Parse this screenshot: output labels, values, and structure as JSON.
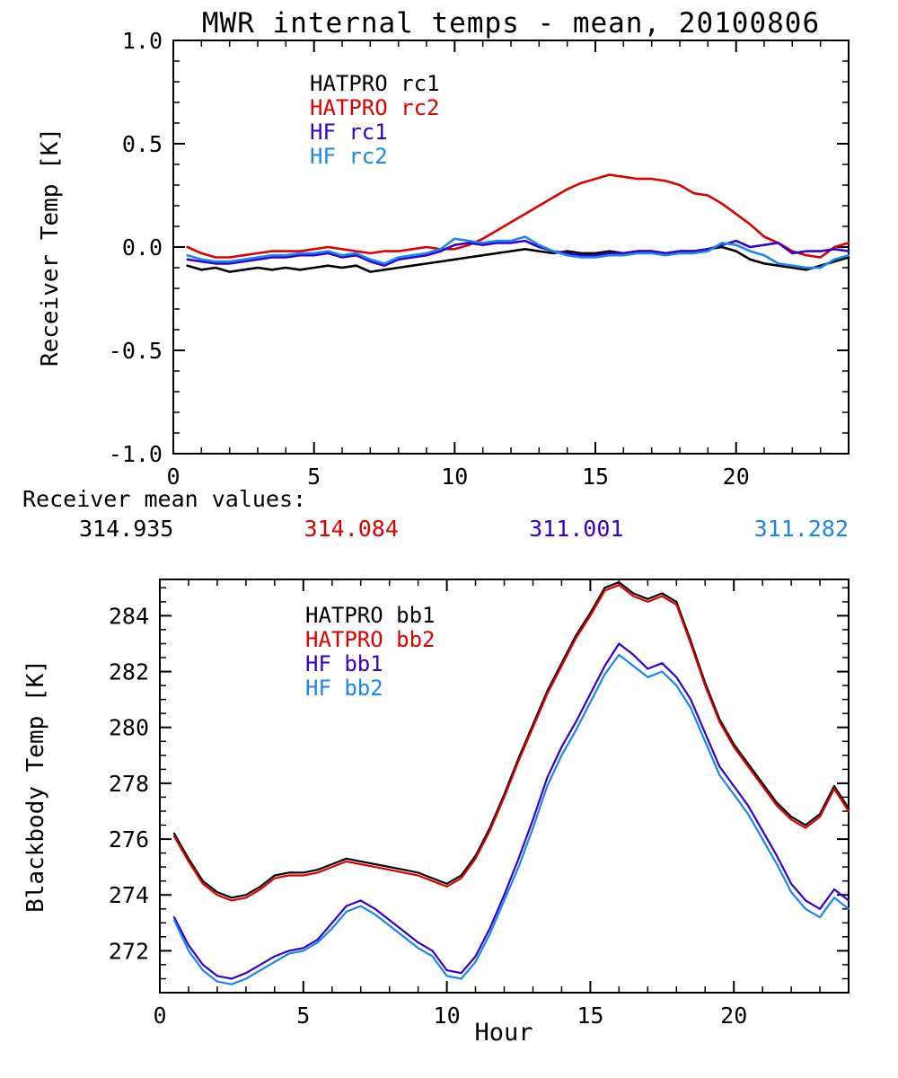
{
  "title": "MWR internal temps - mean, 20100806",
  "colors": {
    "black": "#000000",
    "red": "#dd0000",
    "blue": "#3300cc",
    "lightblue": "#1c86ee"
  },
  "mean_values": {
    "header": "Receiver mean values:",
    "values": [
      {
        "text": "314.935",
        "color_key": "black"
      },
      {
        "text": "314.084",
        "color_key": "red"
      },
      {
        "text": "311.001",
        "color_key": "blue"
      },
      {
        "text": "311.282",
        "color_key": "lightblue"
      }
    ]
  },
  "chart_data": [
    {
      "type": "line",
      "panel": "receiver",
      "title": "MWR internal temps - mean, 20100806",
      "ylabel": "Receiver Temp [K]",
      "xlabel": "",
      "xlim": [
        0,
        24
      ],
      "ylim": [
        -1.0,
        1.0
      ],
      "grid": false,
      "legend_position": "upper-left-inside",
      "xticks": {
        "values": [
          0,
          5,
          10,
          15,
          20
        ],
        "labels": [
          "0",
          "5",
          "10",
          "15",
          "20"
        ],
        "minor_step": 1
      },
      "yticks": {
        "values": [
          -1.0,
          -0.5,
          0.0,
          0.5,
          1.0
        ],
        "labels": [
          "-1.0",
          "-0.5",
          "0.0",
          "0.5",
          "1.0"
        ],
        "minor_step": 0.1
      },
      "legend": [
        {
          "label": "HATPRO rc1",
          "color_key": "black"
        },
        {
          "label": "HATPRO rc2",
          "color_key": "red"
        },
        {
          "label": "HF rc1",
          "color_key": "blue"
        },
        {
          "label": "HF rc2",
          "color_key": "lightblue"
        }
      ],
      "series": [
        {
          "name": "HATPRO rc1",
          "color_key": "black",
          "x_start": 0.5,
          "x_step": 0.5,
          "values": [
            -0.09,
            -0.11,
            -0.1,
            -0.12,
            -0.11,
            -0.1,
            -0.11,
            -0.1,
            -0.11,
            -0.1,
            -0.09,
            -0.1,
            -0.09,
            -0.12,
            -0.11,
            -0.1,
            -0.09,
            -0.08,
            -0.07,
            -0.06,
            -0.05,
            -0.04,
            -0.03,
            -0.02,
            -0.01,
            -0.02,
            -0.03,
            -0.02,
            -0.03,
            -0.03,
            -0.02,
            -0.03,
            -0.02,
            -0.02,
            -0.03,
            -0.02,
            -0.02,
            -0.01,
            0.0,
            -0.02,
            -0.06,
            -0.08,
            -0.09,
            -0.1,
            -0.11,
            -0.09,
            -0.07,
            -0.05
          ]
        },
        {
          "name": "HATPRO rc2",
          "color_key": "red",
          "x_start": 0.5,
          "x_step": 0.5,
          "values": [
            0.0,
            -0.03,
            -0.05,
            -0.05,
            -0.04,
            -0.03,
            -0.02,
            -0.02,
            -0.02,
            -0.01,
            0.0,
            -0.01,
            -0.02,
            -0.03,
            -0.02,
            -0.02,
            -0.01,
            0.0,
            -0.01,
            -0.01,
            0.01,
            0.04,
            0.08,
            0.12,
            0.16,
            0.2,
            0.24,
            0.28,
            0.31,
            0.33,
            0.35,
            0.34,
            0.33,
            0.33,
            0.32,
            0.3,
            0.26,
            0.25,
            0.21,
            0.16,
            0.11,
            0.05,
            0.02,
            -0.02,
            -0.04,
            -0.05,
            0.0,
            0.02
          ]
        },
        {
          "name": "HF rc1",
          "color_key": "blue",
          "x_start": 0.5,
          "x_step": 0.5,
          "values": [
            -0.06,
            -0.07,
            -0.08,
            -0.08,
            -0.07,
            -0.06,
            -0.05,
            -0.05,
            -0.04,
            -0.04,
            -0.03,
            -0.05,
            -0.04,
            -0.07,
            -0.09,
            -0.06,
            -0.05,
            -0.04,
            -0.02,
            0.01,
            0.02,
            0.01,
            0.02,
            0.02,
            0.03,
            0.0,
            -0.02,
            -0.03,
            -0.04,
            -0.04,
            -0.03,
            -0.03,
            -0.02,
            -0.02,
            -0.03,
            -0.02,
            -0.02,
            -0.01,
            0.01,
            0.03,
            0.0,
            0.01,
            0.02,
            -0.03,
            -0.02,
            -0.02,
            -0.01,
            -0.02
          ]
        },
        {
          "name": "HF rc2",
          "color_key": "lightblue",
          "x_start": 0.5,
          "x_step": 0.5,
          "values": [
            -0.04,
            -0.06,
            -0.07,
            -0.07,
            -0.06,
            -0.05,
            -0.04,
            -0.04,
            -0.03,
            -0.03,
            -0.02,
            -0.04,
            -0.03,
            -0.06,
            -0.08,
            -0.05,
            -0.04,
            -0.03,
            -0.01,
            0.04,
            0.03,
            0.02,
            0.03,
            0.03,
            0.05,
            0.01,
            -0.02,
            -0.04,
            -0.05,
            -0.05,
            -0.04,
            -0.04,
            -0.03,
            -0.03,
            -0.04,
            -0.03,
            -0.03,
            -0.02,
            0.02,
            0.01,
            -0.02,
            -0.04,
            -0.08,
            -0.09,
            -0.1,
            -0.1,
            -0.06,
            -0.04
          ]
        }
      ]
    },
    {
      "type": "line",
      "panel": "blackbody",
      "title": "",
      "ylabel": "Blackbody Temp [K]",
      "xlabel": "Hour",
      "xlim": [
        0,
        24
      ],
      "ylim": [
        270.5,
        285.3
      ],
      "grid": false,
      "legend_position": "upper-left-inside",
      "xticks": {
        "values": [
          0,
          5,
          10,
          15,
          20
        ],
        "labels": [
          "0",
          "5",
          "10",
          "15",
          "20"
        ],
        "minor_step": 1
      },
      "yticks": {
        "values": [
          272,
          274,
          276,
          278,
          280,
          282,
          284
        ],
        "labels": [
          "272",
          "274",
          "276",
          "278",
          "280",
          "282",
          "284"
        ],
        "minor_step": 0.5
      },
      "legend": [
        {
          "label": "HATPRO bb1",
          "color_key": "black"
        },
        {
          "label": "HATPRO bb2",
          "color_key": "red"
        },
        {
          "label": "HF bb1",
          "color_key": "blue"
        },
        {
          "label": "HF bb2",
          "color_key": "lightblue"
        }
      ],
      "series": [
        {
          "name": "HATPRO bb1",
          "color_key": "black",
          "x_start": 0.5,
          "x_step": 0.5,
          "values": [
            276.2,
            275.3,
            274.5,
            274.1,
            273.9,
            274.0,
            274.3,
            274.7,
            274.8,
            274.8,
            274.9,
            275.1,
            275.3,
            275.2,
            275.1,
            275.0,
            274.9,
            274.8,
            274.6,
            274.4,
            274.7,
            275.4,
            276.4,
            277.6,
            278.9,
            280.1,
            281.3,
            282.3,
            283.3,
            284.1,
            285.0,
            285.2,
            284.8,
            284.6,
            284.8,
            284.5,
            283.1,
            281.6,
            280.3,
            279.4,
            278.7,
            278.0,
            277.3,
            276.8,
            276.5,
            276.9,
            277.9,
            277.1
          ]
        },
        {
          "name": "HATPRO bb2",
          "color_key": "red",
          "x_start": 0.5,
          "x_step": 0.5,
          "values": [
            276.1,
            275.2,
            274.4,
            274.0,
            273.8,
            273.9,
            274.2,
            274.6,
            274.7,
            274.7,
            274.8,
            275.0,
            275.2,
            275.1,
            275.0,
            274.9,
            274.8,
            274.7,
            274.5,
            274.3,
            274.6,
            275.3,
            276.3,
            277.5,
            278.8,
            280.0,
            281.2,
            282.2,
            283.2,
            284.0,
            284.9,
            285.1,
            284.7,
            284.5,
            284.7,
            284.4,
            283.0,
            281.5,
            280.2,
            279.3,
            278.6,
            277.9,
            277.2,
            276.7,
            276.4,
            276.8,
            277.8,
            277.0
          ]
        },
        {
          "name": "HF bb1",
          "color_key": "blue",
          "x_start": 0.5,
          "x_step": 0.5,
          "values": [
            273.2,
            272.2,
            271.5,
            271.1,
            271.0,
            271.2,
            271.5,
            271.8,
            272.0,
            272.1,
            272.4,
            273.0,
            273.6,
            273.8,
            273.5,
            273.1,
            272.7,
            272.3,
            272.0,
            271.3,
            271.2,
            271.8,
            272.8,
            274.0,
            275.3,
            276.7,
            278.2,
            279.3,
            280.2,
            281.2,
            282.2,
            283.0,
            282.6,
            282.1,
            282.3,
            281.8,
            281.0,
            279.8,
            278.6,
            277.9,
            277.2,
            276.3,
            275.4,
            274.4,
            273.8,
            273.5,
            274.2,
            273.8
          ]
        },
        {
          "name": "HF bb2",
          "color_key": "lightblue",
          "x_start": 0.5,
          "x_step": 0.5,
          "values": [
            273.1,
            272.0,
            271.3,
            270.9,
            270.8,
            271.0,
            271.3,
            271.6,
            271.9,
            272.0,
            272.3,
            272.8,
            273.4,
            273.6,
            273.3,
            272.9,
            272.5,
            272.1,
            271.8,
            271.1,
            271.0,
            271.6,
            272.6,
            273.8,
            275.0,
            276.4,
            277.9,
            279.0,
            279.9,
            280.9,
            281.9,
            282.6,
            282.2,
            281.8,
            282.0,
            281.5,
            280.7,
            279.5,
            278.3,
            277.6,
            276.9,
            276.0,
            275.1,
            274.1,
            273.5,
            273.2,
            273.9,
            273.5
          ]
        }
      ]
    }
  ]
}
